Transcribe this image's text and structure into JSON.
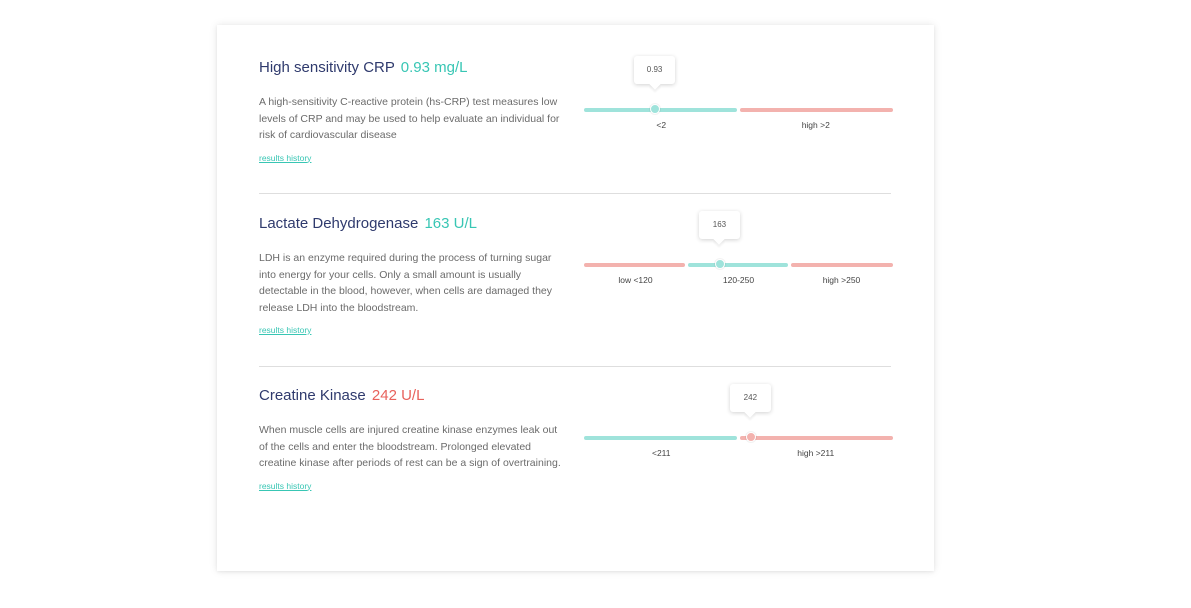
{
  "colors": {
    "normal": "#9fe3db",
    "high": "#f3b2ae",
    "value_normal": "#38c6b4",
    "value_high": "#e8625c",
    "knob_normal": "#9fe3db",
    "knob_high": "#f3b2ae"
  },
  "markers": [
    {
      "name": "High sensitivity CRP",
      "value": "0.93 mg/L",
      "value_status": "normal",
      "description": "A high-sensitivity C-reactive protein (hs-CRP) test measures low levels of CRP and may be used to help evaluate an individual for risk of cardiovascular disease",
      "link": "results history",
      "bubble": "0.93",
      "knob_position": 0.23,
      "ranges": [
        {
          "label": "<2",
          "status": "normal",
          "width": 0.5
        },
        {
          "label": "high >2",
          "status": "high",
          "width": 0.5
        }
      ]
    },
    {
      "name": "Lactate Dehydrogenase",
      "value": "163 U/L",
      "value_status": "normal",
      "description": "LDH is an enzyme required during the process of turning sugar into energy for your cells. Only a small amount is usually detectable in the blood, however, when cells are damaged they release LDH into the bloodstream.",
      "link": "results history",
      "bubble": "163",
      "knob_position": 0.44,
      "ranges": [
        {
          "label": "low <120",
          "status": "high",
          "width": 0.3333
        },
        {
          "label": "120-250",
          "status": "normal",
          "width": 0.3333
        },
        {
          "label": "high >250",
          "status": "high",
          "width": 0.3334
        }
      ]
    },
    {
      "name": "Creatine Kinase",
      "value": "242 U/L",
      "value_status": "high",
      "description": "When muscle cells are injured creatine kinase enzymes leak out of the cells and enter the bloodstream. Prolonged elevated creatine kinase after periods of rest can be a sign of overtraining.",
      "link": "results history",
      "bubble": "242",
      "knob_position": 0.54,
      "ranges": [
        {
          "label": "<211",
          "status": "normal",
          "width": 0.5
        },
        {
          "label": "high >211",
          "status": "high",
          "width": 0.5
        }
      ]
    }
  ]
}
